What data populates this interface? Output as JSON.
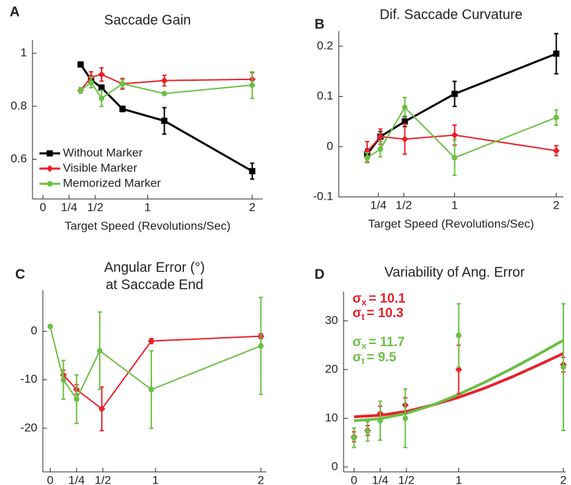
{
  "chart_data": [
    {
      "panel": "A",
      "type": "line",
      "title": "Saccade Gain",
      "xlabel": "Target Speed (Revolutions/Sec)",
      "xlim": [
        -0.1,
        2.1
      ],
      "ylim": [
        0.45,
        1.05
      ],
      "xticks": [
        0,
        {
          "value": 0.25,
          "label": "1/4"
        },
        {
          "value": 0.5,
          "label": "1/2"
        },
        1,
        2
      ],
      "yticks": [
        0.6,
        0.8,
        1
      ],
      "legend": "lower left",
      "series": [
        {
          "name": "Without Marker",
          "color": "#000000",
          "marker": "square",
          "x": [
            0.36,
            0.46,
            0.56,
            0.76,
            1.16,
            2.0
          ],
          "values": [
            0.958,
            0.9,
            0.87,
            0.79,
            0.745,
            0.555
          ],
          "errors": [
            0.005,
            0.01,
            0.01,
            0.01,
            0.05,
            0.03
          ]
        },
        {
          "name": "Visible Marker",
          "color": "#e8202a",
          "marker": "diamond",
          "x": [
            0.36,
            0.46,
            0.56,
            0.76,
            1.16,
            2.0
          ],
          "values": [
            0.86,
            0.91,
            0.92,
            0.885,
            0.897,
            0.902
          ],
          "errors": [
            0.01,
            0.02,
            0.025,
            0.02,
            0.02,
            0.025
          ]
        },
        {
          "name": "Memorized Marker",
          "color": "#6cbf45",
          "marker": "circle",
          "x": [
            0.36,
            0.46,
            0.56,
            0.76,
            1.16,
            2.0
          ],
          "values": [
            0.86,
            0.89,
            0.83,
            0.885,
            0.848,
            0.88
          ],
          "errors": [
            0.01,
            0.02,
            0.03,
            0.015,
            0.005,
            0.05
          ]
        }
      ]
    },
    {
      "panel": "B",
      "type": "line",
      "title": "Dif. Saccade Curvature",
      "xlabel": "Target Speed (Revolutions/Sec)",
      "xlim": [
        -0.14,
        2.07
      ],
      "ylim": [
        -0.1,
        0.23
      ],
      "xticks": [
        {
          "value": 0.25,
          "label": "1/4"
        },
        {
          "value": 0.5,
          "label": "1/2"
        },
        1,
        2
      ],
      "yticks": [
        -0.1,
        0,
        0.1,
        0.2
      ],
      "series": [
        {
          "color": "#000000",
          "marker": "square",
          "x": [
            0.14,
            0.27,
            0.51,
            1.0,
            2.0
          ],
          "values": [
            -0.015,
            0.02,
            0.05,
            0.105,
            0.185
          ],
          "errors": [
            0.01,
            0.01,
            0.01,
            0.025,
            0.04
          ]
        },
        {
          "color": "#e8202a",
          "marker": "diamond",
          "x": [
            0.14,
            0.27,
            0.51,
            1.0,
            2.0
          ],
          "values": [
            -0.01,
            0.02,
            0.015,
            0.023,
            -0.008
          ],
          "errors": [
            0.02,
            0.015,
            0.03,
            0.02,
            0.01
          ]
        },
        {
          "color": "#6cbf45",
          "marker": "circle",
          "x": [
            0.14,
            0.27,
            0.51,
            1.0,
            2.0
          ],
          "values": [
            -0.022,
            -0.005,
            0.078,
            -0.022,
            0.058
          ],
          "errors": [
            0.01,
            0.015,
            0.02,
            0.035,
            0.015
          ]
        }
      ]
    },
    {
      "panel": "C",
      "type": "line",
      "title": "Angular Error (°)",
      "subtitle": "at Saccade End",
      "xlabel": "Target Speed (Revolutions/Sec)",
      "xlim": [
        -0.07,
        2.05
      ],
      "ylim": [
        -29,
        8.5
      ],
      "xticks": [
        0,
        {
          "value": 0.25,
          "label": "1/4"
        },
        {
          "value": 0.5,
          "label": "1/2"
        },
        1,
        2
      ],
      "yticks": [
        -20,
        -10,
        0
      ],
      "series": [
        {
          "color": "#e8202a",
          "marker": "diamond",
          "x": [
            0.125,
            0.25,
            0.49,
            0.96,
            2.0
          ],
          "values": [
            -9,
            -12,
            -16,
            -2,
            -1
          ],
          "errors": [
            1,
            1,
            4.5,
            0.5,
            0.5
          ]
        },
        {
          "color": "#6cbf45",
          "marker": "circle",
          "x": [
            0,
            0.125,
            0.25,
            0.47,
            0.96,
            2.0
          ],
          "values": [
            1,
            -10,
            -14,
            -4,
            -12,
            -3
          ],
          "errors": [
            null,
            4,
            5,
            8,
            8,
            10
          ]
        }
      ]
    },
    {
      "panel": "D",
      "type": "scatter",
      "title": "Variability of Ang. Error",
      "xlabel": "Target Speed (Revolutions/Sec)",
      "xlim": [
        -0.1,
        2.02
      ],
      "ylim": [
        -1,
        36
      ],
      "xticks": [
        0,
        {
          "value": 0.25,
          "label": "1/4"
        },
        {
          "value": 0.5,
          "label": "1/2"
        },
        1,
        2
      ],
      "yticks": [
        0,
        10,
        20,
        30
      ],
      "fits": [
        {
          "color": "#e8202a",
          "x": [
            0,
            0.25,
            0.5,
            0.75,
            1,
            1.25,
            1.5,
            1.75,
            2
          ],
          "values": [
            10.3,
            10.6,
            11.4,
            12.7,
            14.3,
            16.2,
            18.4,
            20.8,
            23.3
          ]
        },
        {
          "color": "#6cbf45",
          "x": [
            0,
            0.25,
            0.5,
            0.75,
            1,
            1.25,
            1.5,
            1.75,
            2
          ],
          "values": [
            9.5,
            9.9,
            11.0,
            12.7,
            14.9,
            17.4,
            20.1,
            23.0,
            26.0
          ]
        }
      ],
      "series": [
        {
          "color": "#e8202a",
          "marker": "diamond",
          "x": [
            0,
            0.13,
            0.25,
            0.49,
            1.0,
            2.0
          ],
          "values": [
            6.2,
            7.5,
            11,
            12.7,
            20,
            21
          ],
          "errors": [
            1,
            1,
            1.5,
            1.5,
            5,
            1.5
          ]
        },
        {
          "color": "#6cbf45",
          "marker": "circle",
          "x": [
            0,
            0.13,
            0.25,
            0.49,
            1.0,
            2.0
          ],
          "values": [
            6,
            7.3,
            9.5,
            10,
            27,
            20.5
          ],
          "errors": [
            2,
            2,
            4,
            6,
            6.5,
            13
          ]
        }
      ],
      "annotations": [
        {
          "symbol": "σ",
          "sub": "x",
          "text": "= 10.1",
          "color": "#e8202a"
        },
        {
          "symbol": "σ",
          "sub": "t",
          "text": "= 10.3",
          "color": "#e8202a"
        },
        {
          "symbol": "σ",
          "sub": "x",
          "text": "= 11.7",
          "color": "#6cbf45"
        },
        {
          "symbol": "σ",
          "sub": "t",
          "text": "= 9.5",
          "color": "#6cbf45"
        }
      ]
    }
  ]
}
